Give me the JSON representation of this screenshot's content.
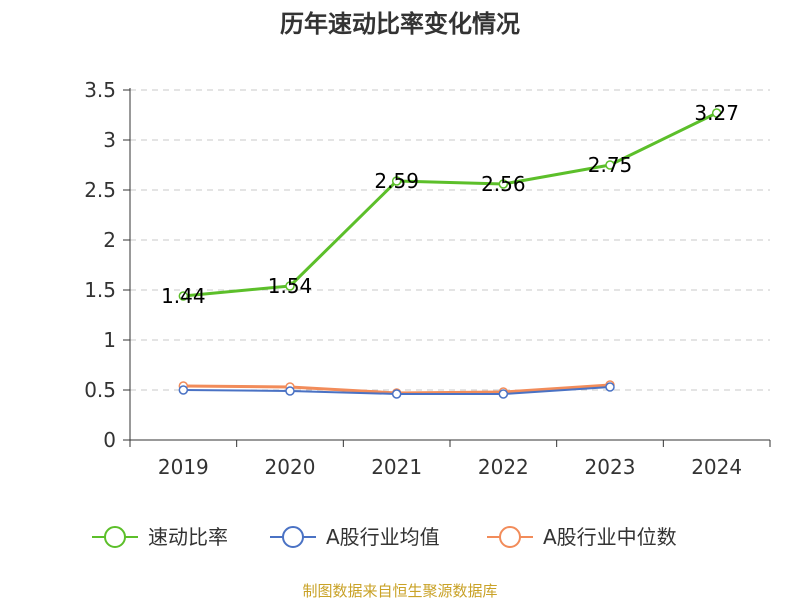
{
  "chart_data": {
    "type": "line",
    "title": "历年速动比率变化情况",
    "categories": [
      "2019",
      "2020",
      "2021",
      "2022",
      "2023",
      "2024"
    ],
    "ylim": [
      0,
      3.5
    ],
    "yticks": [
      "0",
      "0.5",
      "1",
      "1.5",
      "2",
      "2.5",
      "3",
      "3.5"
    ],
    "ytick_values": [
      0,
      0.5,
      1,
      1.5,
      2,
      2.5,
      3,
      3.5
    ],
    "grid": true,
    "legend_position": "bottom",
    "series": [
      {
        "name": "速动比率",
        "color": "#5cbf2a",
        "values": [
          1.44,
          1.54,
          2.59,
          2.56,
          2.75,
          3.27
        ],
        "labels": [
          "1.44",
          "1.54",
          "2.59",
          "2.56",
          "2.75",
          "3.27"
        ]
      },
      {
        "name": "A股行业均值",
        "color": "#4a72c4",
        "values": [
          0.5,
          0.49,
          0.46,
          0.46,
          0.53,
          null
        ]
      },
      {
        "name": "A股行业中位数",
        "color": "#f28c5a",
        "values": [
          0.54,
          0.53,
          0.47,
          0.48,
          0.55,
          null
        ]
      }
    ],
    "source": "制图数据来自恒生聚源数据库"
  }
}
